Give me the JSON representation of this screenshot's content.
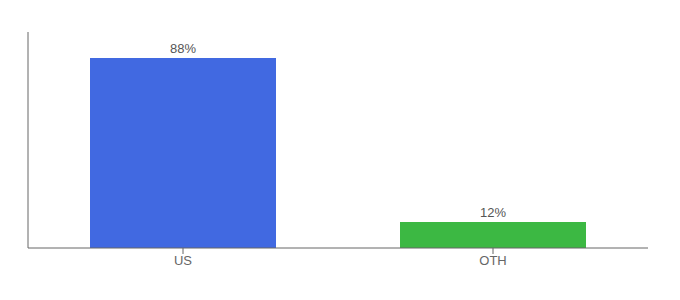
{
  "chart_data": {
    "type": "bar",
    "categories": [
      "US",
      "OTH"
    ],
    "values": [
      88,
      12
    ],
    "value_labels": [
      "88%",
      "12%"
    ],
    "colors": [
      "#4169e1",
      "#3cb843"
    ],
    "ylim": [
      0,
      100
    ],
    "yticks": [],
    "data_labels": true,
    "tick_labels": "x"
  }
}
